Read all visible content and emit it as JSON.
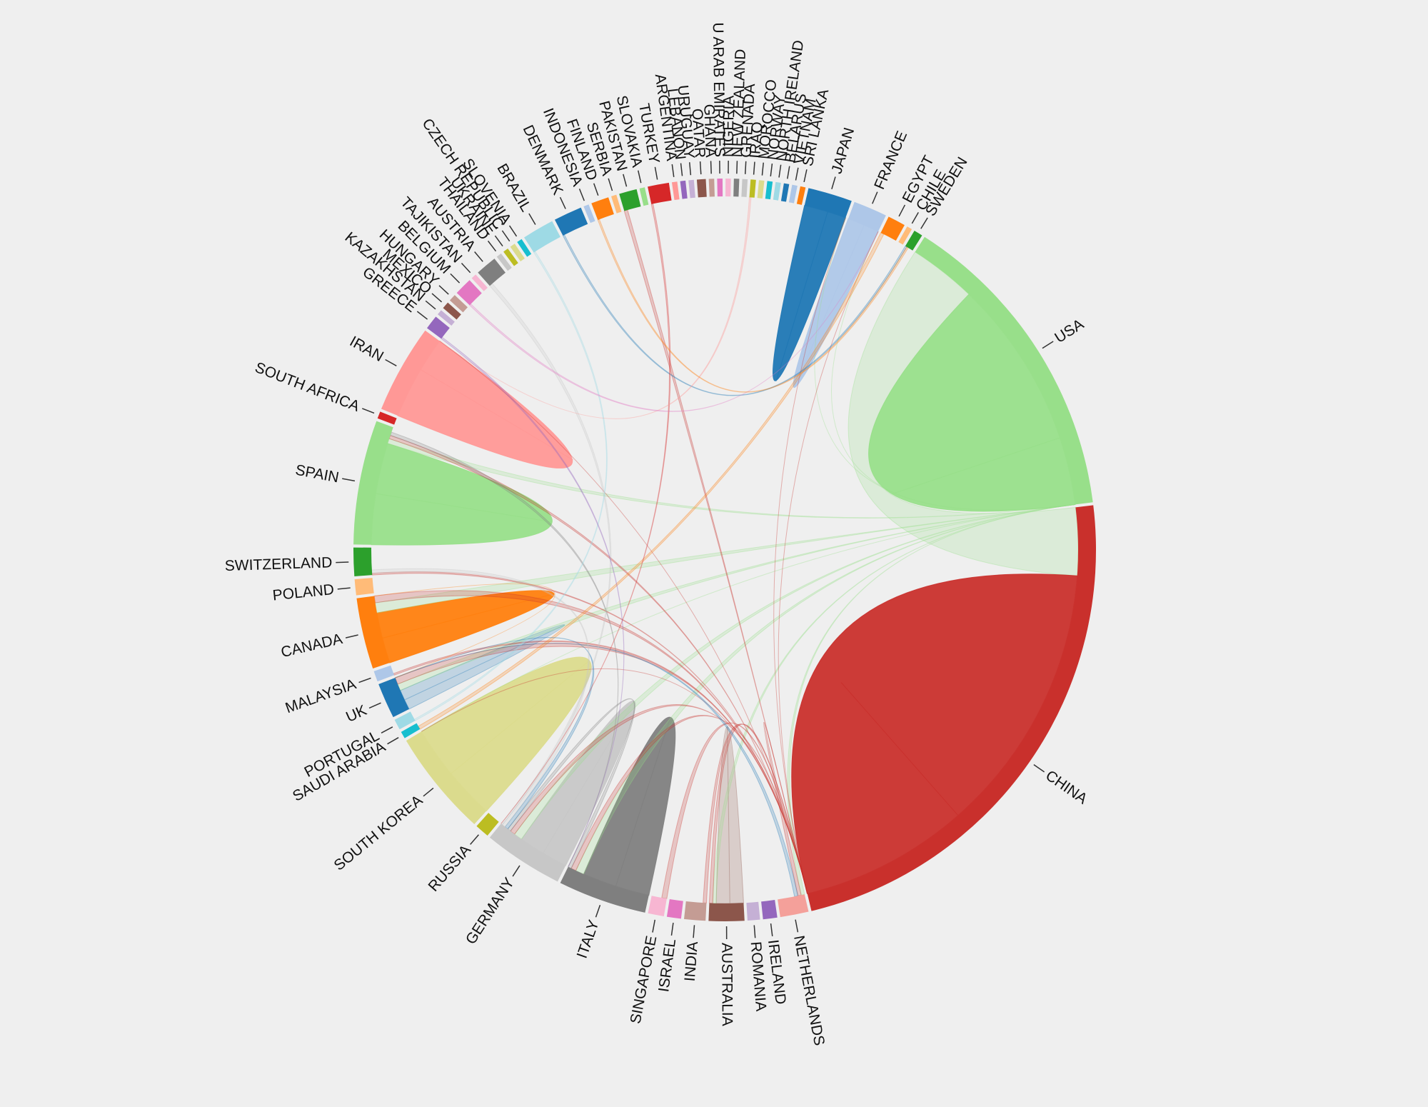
{
  "title": "",
  "colors": {
    "background": "#efefef",
    "ribbon_default": "#cfcfcf"
  },
  "chart_data": {
    "type": "chord",
    "title": "",
    "nodes": [
      {
        "name": "CHINA",
        "weight": 30,
        "color": "#c9302c"
      },
      {
        "name": "NETHERLANDS",
        "weight": 1.6,
        "color": "#f4a09a"
      },
      {
        "name": "IRELAND",
        "weight": 0.8,
        "color": "#9467bd"
      },
      {
        "name": "ROMANIA",
        "weight": 0.7,
        "color": "#c5b0d5"
      },
      {
        "name": "AUSTRALIA",
        "weight": 2.0,
        "color": "#8c564b"
      },
      {
        "name": "INDIA",
        "weight": 1.2,
        "color": "#c49c94"
      },
      {
        "name": "ISRAEL",
        "weight": 0.8,
        "color": "#e377c2"
      },
      {
        "name": "SINGAPORE",
        "weight": 0.9,
        "color": "#f7b6d2"
      },
      {
        "name": "ITALY",
        "weight": 5.0,
        "color": "#7f7f7f"
      },
      {
        "name": "GERMANY",
        "weight": 4.5,
        "color": "#c7c7c7"
      },
      {
        "name": "RUSSIA",
        "weight": 0.8,
        "color": "#bcbd22"
      },
      {
        "name": "SOUTH KOREA",
        "weight": 6.0,
        "color": "#dbdb8d"
      },
      {
        "name": "SAUDI ARABIA",
        "weight": 0.4,
        "color": "#17becf"
      },
      {
        "name": "PORTUGAL",
        "weight": 0.6,
        "color": "#9edae5"
      },
      {
        "name": "UK",
        "weight": 2.0,
        "color": "#1f77b4"
      },
      {
        "name": "MALAYSIA",
        "weight": 0.6,
        "color": "#aec7e8"
      },
      {
        "name": "CANADA",
        "weight": 4.0,
        "color": "#ff7f0e"
      },
      {
        "name": "POLAND",
        "weight": 0.9,
        "color": "#ffbb78"
      },
      {
        "name": "SWITZERLAND",
        "weight": 1.6,
        "color": "#2ca02c"
      },
      {
        "name": "SPAIN",
        "weight": 7.0,
        "color": "#98df8a"
      },
      {
        "name": "SOUTH AFRICA",
        "weight": 0.4,
        "color": "#d62728"
      },
      {
        "name": "IRAN",
        "weight": 5.0,
        "color": "#ff9896"
      },
      {
        "name": "GREECE",
        "weight": 0.8,
        "color": "#9467bd"
      },
      {
        "name": "KAZAKHSTAN",
        "weight": 0.3,
        "color": "#c5b0d5"
      },
      {
        "name": "MEXICO",
        "weight": 0.4,
        "color": "#8c564b"
      },
      {
        "name": "HUNGARY",
        "weight": 0.4,
        "color": "#c49c94"
      },
      {
        "name": "BELGIUM",
        "weight": 1.0,
        "color": "#e377c2"
      },
      {
        "name": "TAJIKISTAN",
        "weight": 0.3,
        "color": "#f7b6d2"
      },
      {
        "name": "AUSTRIA",
        "weight": 1.2,
        "color": "#7f7f7f"
      },
      {
        "name": "THAILAND",
        "weight": 0.3,
        "color": "#c7c7c7"
      },
      {
        "name": "UKRAINE",
        "weight": 0.3,
        "color": "#bcbd22"
      },
      {
        "name": "CZECH REPUBLIC",
        "weight": 0.3,
        "color": "#dbdb8d"
      },
      {
        "name": "SLOVENIA",
        "weight": 0.3,
        "color": "#17becf"
      },
      {
        "name": "BRAZIL",
        "weight": 1.8,
        "color": "#9edae5"
      },
      {
        "name": "DENMARK",
        "weight": 1.6,
        "color": "#1f77b4"
      },
      {
        "name": "INDONESIA",
        "weight": 0.3,
        "color": "#aec7e8"
      },
      {
        "name": "FINLAND",
        "weight": 1.0,
        "color": "#ff7f0e"
      },
      {
        "name": "SERBIA",
        "weight": 0.3,
        "color": "#ffbb78"
      },
      {
        "name": "PAKISTAN",
        "weight": 1.0,
        "color": "#2ca02c"
      },
      {
        "name": "SLOVAKIA",
        "weight": 0.3,
        "color": "#98df8a"
      },
      {
        "name": "TURKEY",
        "weight": 1.2,
        "color": "#d62728"
      },
      {
        "name": "ARGENTINA",
        "weight": 0.3,
        "color": "#ff9896"
      },
      {
        "name": "LEBANON",
        "weight": 0.3,
        "color": "#9467bd"
      },
      {
        "name": "URUGUAY",
        "weight": 0.3,
        "color": "#c5b0d5"
      },
      {
        "name": "QATAR",
        "weight": 0.5,
        "color": "#8c564b"
      },
      {
        "name": "GHANA",
        "weight": 0.3,
        "color": "#c49c94"
      },
      {
        "name": "U ARAB EMIRATES",
        "weight": 0.3,
        "color": "#e377c2"
      },
      {
        "name": "NIGERIA",
        "weight": 0.3,
        "color": "#f7b6d2"
      },
      {
        "name": "NEW ZEALAND",
        "weight": 0.3,
        "color": "#7f7f7f"
      },
      {
        "name": "GRENADA",
        "weight": 0.3,
        "color": "#c7c7c7"
      },
      {
        "name": "IRAQ",
        "weight": 0.3,
        "color": "#bcbd22"
      },
      {
        "name": "MOROCCO",
        "weight": 0.3,
        "color": "#dbdb8d"
      },
      {
        "name": "NORWAY",
        "weight": 0.3,
        "color": "#17becf"
      },
      {
        "name": "NORTH IRELAND",
        "weight": 0.3,
        "color": "#9edae5"
      },
      {
        "name": "BELARUS",
        "weight": 0.3,
        "color": "#1f77b4"
      },
      {
        "name": "VIETNAM",
        "weight": 0.3,
        "color": "#aec7e8"
      },
      {
        "name": "SRI LANKA",
        "weight": 0.3,
        "color": "#ff7f0e"
      },
      {
        "name": "JAPAN",
        "weight": 2.5,
        "color": "#1f77b4"
      },
      {
        "name": "FRANCE",
        "weight": 1.9,
        "color": "#aec7e8"
      },
      {
        "name": "EGYPT",
        "weight": 1.0,
        "color": "#ff7f0e"
      },
      {
        "name": "CHILE",
        "weight": 0.3,
        "color": "#ffbb78"
      },
      {
        "name": "SWEDEN",
        "weight": 0.5,
        "color": "#2ca02c"
      },
      {
        "name": "USA",
        "weight": 18,
        "color": "#98df8a"
      }
    ],
    "links": [
      {
        "source": "USA",
        "target": "CHINA",
        "value": 4
      },
      {
        "source": "CHINA",
        "target": "CHINA",
        "value": 16
      },
      {
        "source": "USA",
        "target": "USA",
        "value": 10
      },
      {
        "source": "JAPAN",
        "target": "JAPAN",
        "value": 1.4
      },
      {
        "source": "FRANCE",
        "target": "FRANCE",
        "value": 1
      },
      {
        "source": "SPAIN",
        "target": "SPAIN",
        "value": 3
      },
      {
        "source": "IRAN",
        "target": "IRAN",
        "value": 3
      },
      {
        "source": "SOUTH KOREA",
        "target": "SOUTH KOREA",
        "value": 3
      },
      {
        "source": "ITALY",
        "target": "ITALY",
        "value": 2
      },
      {
        "source": "GERMANY",
        "target": "GERMANY",
        "value": 1.5
      },
      {
        "source": "CANADA",
        "target": "CANADA",
        "value": 1.5
      },
      {
        "source": "AUSTRALIA",
        "target": "AUSTRALIA",
        "value": 0.8
      },
      {
        "source": "UK",
        "target": "UK",
        "value": 0.6
      },
      {
        "source": "USA",
        "target": "ITALY",
        "value": 0.5
      },
      {
        "source": "USA",
        "target": "GERMANY",
        "value": 0.5
      },
      {
        "source": "USA",
        "target": "CANADA",
        "value": 0.6
      },
      {
        "source": "USA",
        "target": "UK",
        "value": 0.4
      },
      {
        "source": "USA",
        "target": "FRANCE",
        "value": 0.3
      },
      {
        "source": "USA",
        "target": "JAPAN",
        "value": 0.3
      },
      {
        "source": "USA",
        "target": "SOUTH KOREA",
        "value": 0.4
      },
      {
        "source": "USA",
        "target": "SPAIN",
        "value": 0.3
      },
      {
        "source": "USA",
        "target": "NETHERLANDS",
        "value": 0.2
      },
      {
        "source": "USA",
        "target": "AUSTRALIA",
        "value": 0.2
      },
      {
        "source": "CHINA",
        "target": "JAPAN",
        "value": 0.4
      },
      {
        "source": "CHINA",
        "target": "UK",
        "value": 0.4
      },
      {
        "source": "CHINA",
        "target": "CANADA",
        "value": 0.4
      },
      {
        "source": "CHINA",
        "target": "AUSTRALIA",
        "value": 0.3
      },
      {
        "source": "CHINA",
        "target": "SINGAPORE",
        "value": 0.3
      },
      {
        "source": "CHINA",
        "target": "GERMANY",
        "value": 0.3
      },
      {
        "source": "CHINA",
        "target": "ITALY",
        "value": 0.3
      },
      {
        "source": "CHINA",
        "target": "SOUTH KOREA",
        "value": 0.3
      },
      {
        "source": "CHINA",
        "target": "FRANCE",
        "value": 0.2
      },
      {
        "source": "CHINA",
        "target": "NETHERLANDS",
        "value": 0.2
      },
      {
        "source": "CHINA",
        "target": "INDIA",
        "value": 0.2
      },
      {
        "source": "CHINA",
        "target": "SPAIN",
        "value": 0.2
      },
      {
        "source": "CHINA",
        "target": "IRAN",
        "value": 0.2
      },
      {
        "source": "CHINA",
        "target": "PAKISTAN",
        "value": 0.2
      },
      {
        "source": "CHINA",
        "target": "MALAYSIA",
        "value": 0.1
      },
      {
        "source": "CHINA",
        "target": "SWITZERLAND",
        "value": 0.1
      },
      {
        "source": "EGYPT",
        "target": "SAUDI ARABIA",
        "value": 0.2
      },
      {
        "source": "ITALY",
        "target": "GERMANY",
        "value": 0.2
      },
      {
        "source": "ITALY",
        "target": "SPAIN",
        "value": 0.2
      },
      {
        "source": "UK",
        "target": "GERMANY",
        "value": 0.2
      },
      {
        "source": "UK",
        "target": "NETHERLANDS",
        "value": 0.2
      },
      {
        "source": "GERMANY",
        "target": "SWITZERLAND",
        "value": 0.2
      },
      {
        "source": "GERMANY",
        "target": "AUSTRIA",
        "value": 0.2
      },
      {
        "source": "DENMARK",
        "target": "SWEDEN",
        "value": 0.1
      },
      {
        "source": "BRAZIL",
        "target": "PORTUGAL",
        "value": 0.1
      },
      {
        "source": "TURKEY",
        "target": "GERMANY",
        "value": 0.1
      },
      {
        "source": "IRAN",
        "target": "IRAQ",
        "value": 0.1
      },
      {
        "source": "CANADA",
        "target": "UK",
        "value": 0.1
      },
      {
        "source": "BELGIUM",
        "target": "FRANCE",
        "value": 0.1
      },
      {
        "source": "GREECE",
        "target": "ITALY",
        "value": 0.1
      },
      {
        "source": "FINLAND",
        "target": "SWEDEN",
        "value": 0.1
      }
    ]
  }
}
